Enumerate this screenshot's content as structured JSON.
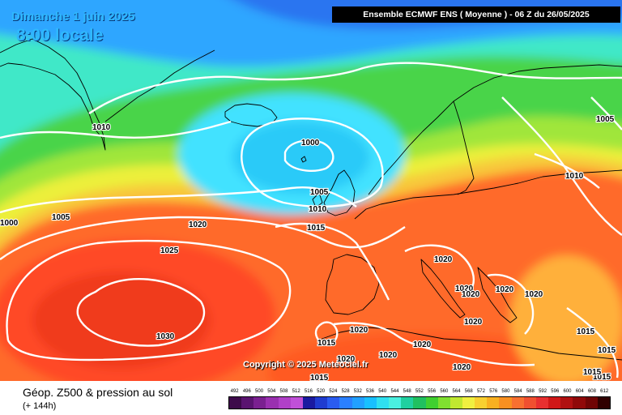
{
  "header": {
    "date": "Dimanche 1 juin 2025",
    "time": "8:00 locale",
    "run_info": "Ensemble ECMWF ENS  ( Moyenne )  -  06 Z du 26/05/2025"
  },
  "copyright": "Copyright © 2025 Meteociel.fr",
  "footer": {
    "parameter": "Géop. Z500 & pression au sol",
    "lead_time": "(+ 144h)"
  },
  "legend": {
    "labels": [
      "492",
      "496",
      "500",
      "504",
      "508",
      "512",
      "516",
      "520",
      "524",
      "528",
      "532",
      "536",
      "540",
      "544",
      "548",
      "552",
      "556",
      "560",
      "564",
      "568",
      "572",
      "576",
      "580",
      "584",
      "588",
      "592",
      "596",
      "600",
      "604",
      "608",
      "612"
    ],
    "colors": [
      "#3d0a4a",
      "#5a1470",
      "#7a2090",
      "#9a30b0",
      "#b040c8",
      "#c050d8",
      "#1a1aa0",
      "#1f3cd0",
      "#2a5cf0",
      "#2a80ff",
      "#21a0ff",
      "#18c0ff",
      "#30e0f0",
      "#4af0e0",
      "#20d0a0",
      "#20c060",
      "#40d030",
      "#80e030",
      "#c0e830",
      "#f0f040",
      "#f8d030",
      "#f8b020",
      "#f89020",
      "#f87030",
      "#f05030",
      "#e83030",
      "#d01818",
      "#b01010",
      "#900808",
      "#700404",
      "#300000"
    ]
  },
  "isobars": [
    "1000",
    "1005",
    "1010",
    "1015",
    "1020",
    "1025",
    "1030"
  ],
  "map": {
    "contour_labels": [
      {
        "value": "1010"
      },
      {
        "value": "1000"
      },
      {
        "value": "1005"
      },
      {
        "value": "1010"
      },
      {
        "value": "1015"
      },
      {
        "value": "1005"
      },
      {
        "value": "1000"
      },
      {
        "value": "1020"
      },
      {
        "value": "1025"
      },
      {
        "value": "1030"
      },
      {
        "value": "1005"
      },
      {
        "value": "1010"
      },
      {
        "value": "1020"
      },
      {
        "value": "1020"
      },
      {
        "value": "1020"
      },
      {
        "value": "1020"
      },
      {
        "value": "1020"
      },
      {
        "value": "1015"
      },
      {
        "value": "1020"
      },
      {
        "value": "1020"
      },
      {
        "value": "1020"
      },
      {
        "value": "1015"
      },
      {
        "value": "1015"
      },
      {
        "value": "1015"
      },
      {
        "value": "1015"
      },
      {
        "value": "1020"
      },
      {
        "value": "1020"
      },
      {
        "value": "1020"
      },
      {
        "value": "1015"
      }
    ]
  }
}
